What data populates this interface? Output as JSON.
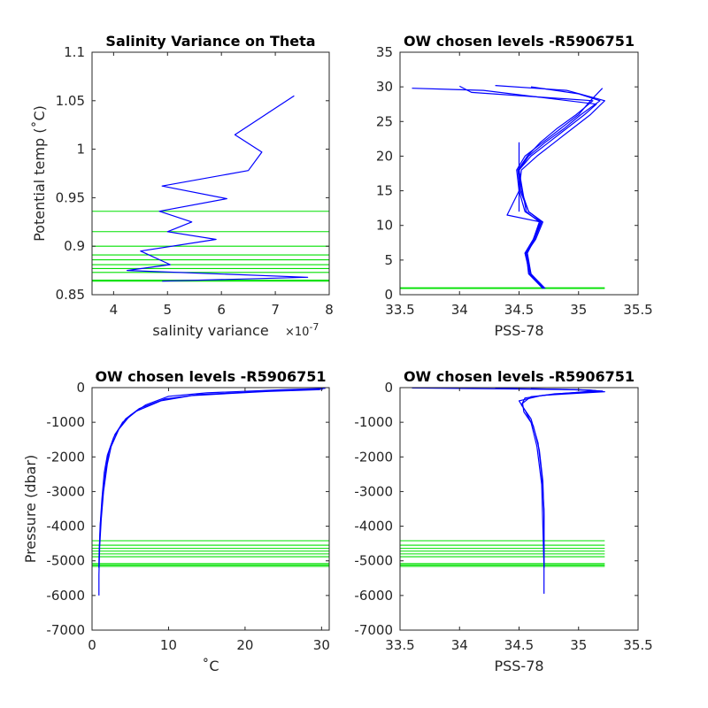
{
  "chart_data": [
    {
      "type": "line",
      "title": "Salinity Variance on Theta",
      "xlabel": "salinity variance",
      "ylabel": "Potential temp (˚C)",
      "x_exponent_label": "×10",
      "x_exponent": "-7",
      "xlim": [
        3.6,
        8
      ],
      "ylim": [
        0.85,
        1.1
      ],
      "xticks": [
        "4",
        "5",
        "6",
        "7",
        "8"
      ],
      "xtick_values": [
        4,
        5,
        6,
        7,
        8
      ],
      "yticks": [
        "0.85",
        "0.9",
        "0.95",
        "1",
        "1.05",
        "1.1"
      ],
      "ytick_values": [
        0.85,
        0.9,
        0.95,
        1.0,
        1.05,
        1.1
      ],
      "series": [
        {
          "color": "#0000ff",
          "x": [
            7.35,
            6.8,
            6.25,
            6.75,
            6.5,
            4.9,
            6.1,
            4.85,
            5.45,
            5.0,
            5.9,
            4.5,
            5.05,
            4.25,
            7.6,
            4.9
          ],
          "y": [
            1.055,
            1.035,
            1.015,
            0.997,
            0.978,
            0.962,
            0.949,
            0.936,
            0.925,
            0.915,
            0.907,
            0.895,
            0.881,
            0.875,
            0.868,
            0.864
          ]
        }
      ],
      "hlines": {
        "color": "#00e000",
        "y": [
          0.936,
          0.915,
          0.9,
          0.891,
          0.886,
          0.881,
          0.877,
          0.873,
          0.865,
          0.864
        ]
      }
    },
    {
      "type": "line",
      "title": "OW chosen levels -R5906751",
      "xlabel": "PSS-78",
      "ylabel": "",
      "xlim": [
        33.5,
        35.5
      ],
      "ylim": [
        0,
        35
      ],
      "xticks": [
        "33.5",
        "34",
        "34.5",
        "35",
        "35.5"
      ],
      "xtick_values": [
        33.5,
        34,
        34.5,
        35,
        35.5
      ],
      "yticks": [
        "0",
        "5",
        "10",
        "15",
        "20",
        "25",
        "30",
        "35"
      ],
      "ytick_values": [
        0,
        5,
        10,
        15,
        20,
        25,
        30,
        35
      ],
      "series": [
        {
          "color": "#0000ff",
          "x": [
            34.72,
            34.6,
            34.55,
            34.62,
            34.68,
            34.55,
            34.5,
            34.48,
            34.55,
            34.7,
            34.85,
            35.0,
            35.1,
            35.2
          ],
          "y": [
            0.9,
            3,
            6,
            8,
            10.5,
            12,
            15,
            18,
            20,
            22,
            24,
            26,
            28,
            29.8
          ]
        },
        {
          "color": "#0000ff",
          "x": [
            34.7,
            34.58,
            34.56,
            34.64,
            34.7,
            34.58,
            34.52,
            34.5,
            34.6,
            34.75,
            34.9,
            35.05,
            35.15,
            34.2,
            33.6
          ],
          "y": [
            0.9,
            3,
            6,
            8,
            10.5,
            12,
            15,
            18,
            20,
            22,
            24,
            26,
            27.5,
            29.5,
            29.8
          ]
        },
        {
          "color": "#0000ff",
          "x": [
            34.7,
            34.6,
            34.57,
            34.63,
            34.68,
            34.4,
            34.5,
            34.52,
            34.65,
            34.8,
            34.95,
            35.1,
            35.22,
            34.9,
            34.3
          ],
          "y": [
            0.9,
            3,
            6,
            8,
            10.5,
            11.5,
            15,
            18,
            20,
            22,
            24,
            26,
            28,
            29.5,
            30.2
          ]
        },
        {
          "color": "#0000ff",
          "x": [
            34.71,
            34.59,
            34.55,
            34.62,
            34.67,
            34.56,
            34.53,
            34.5,
            34.58,
            34.72,
            34.88,
            35.02,
            35.18,
            35.0,
            34.6
          ],
          "y": [
            0.9,
            3,
            6,
            8,
            10.5,
            12,
            15,
            18,
            20,
            22,
            24,
            26,
            28,
            29,
            30
          ]
        },
        {
          "color": "#0000ff",
          "x": [
            34.7,
            34.6,
            34.56,
            34.63,
            34.69,
            34.58,
            34.51,
            34.49,
            34.57,
            34.68,
            34.82,
            34.98,
            35.12,
            34.1,
            34.0
          ],
          "y": [
            0.9,
            3,
            6,
            8,
            10.5,
            12,
            15,
            18,
            20,
            22,
            24,
            26,
            28,
            29.2,
            30.1
          ]
        },
        {
          "color": "#0000ff",
          "x": [
            34.5,
            34.5
          ],
          "y": [
            12,
            22
          ]
        }
      ],
      "hlines": {
        "color": "#00e000",
        "y": [
          0.9,
          1.0
        ],
        "x_extent": [
          33.5,
          35.22
        ]
      }
    },
    {
      "type": "line",
      "title": "OW chosen levels -R5906751",
      "xlabel": "˚C",
      "ylabel": "Pressure (dbar)",
      "xlim": [
        0,
        31
      ],
      "ylim": [
        -7000,
        0
      ],
      "xticks": [
        "0",
        "10",
        "20",
        "30"
      ],
      "xtick_values": [
        0,
        10,
        20,
        30
      ],
      "yticks": [
        "-7000",
        "-6000",
        "-5000",
        "-4000",
        "-3000",
        "-2000",
        "-1000",
        "0"
      ],
      "ytick_values": [
        -7000,
        -6000,
        -5000,
        -4000,
        -3000,
        -2000,
        -1000,
        0
      ],
      "series": [
        {
          "color": "#0000ff",
          "x": [
            30.5,
            25,
            15,
            10,
            7,
            5,
            3.5,
            2.5,
            2,
            1.5,
            1.2,
            1.0,
            0.9,
            0.9
          ],
          "y": [
            -20,
            -60,
            -150,
            -250,
            -500,
            -800,
            -1200,
            -1700,
            -2200,
            -3000,
            -3800,
            -4600,
            -5400,
            -6000
          ]
        },
        {
          "color": "#0000ff",
          "x": [
            30.2,
            24,
            14,
            9.5,
            6.2,
            4.4,
            3.0,
            2.2,
            1.8,
            1.4,
            1.1,
            0.95,
            0.9
          ],
          "y": [
            -40,
            -90,
            -200,
            -330,
            -600,
            -900,
            -1350,
            -1850,
            -2350,
            -3100,
            -3900,
            -4700,
            -5200
          ]
        },
        {
          "color": "#0000ff",
          "x": [
            29.8,
            23,
            13,
            9,
            5.8,
            4.0,
            2.8,
            2.0,
            1.6,
            1.3,
            1.05,
            0.93,
            0.9
          ],
          "y": [
            -60,
            -110,
            -230,
            -380,
            -680,
            -1000,
            -1450,
            -1950,
            -2450,
            -3200,
            -4000,
            -4800,
            -5200
          ]
        }
      ],
      "hlines": {
        "color": "#00e000",
        "y": [
          -4420,
          -4550,
          -4640,
          -4720,
          -4800,
          -4880,
          -5080,
          -5120,
          -5160
        ]
      }
    },
    {
      "type": "line",
      "title": "OW chosen levels -R5906751",
      "xlabel": "PSS-78",
      "ylabel": "",
      "xlim": [
        33.5,
        35.5
      ],
      "ylim": [
        -7000,
        0
      ],
      "xticks": [
        "33.5",
        "34",
        "34.5",
        "35",
        "35.5"
      ],
      "xtick_values": [
        33.5,
        34,
        34.5,
        35,
        35.5
      ],
      "yticks": [
        "-7000",
        "-6000",
        "-5000",
        "-4000",
        "-3000",
        "-2000",
        "-1000",
        "0"
      ],
      "ytick_values": [
        -7000,
        -6000,
        -5000,
        -4000,
        -3000,
        -2000,
        -1000,
        0
      ],
      "series": [
        {
          "color": "#0000ff",
          "x": [
            33.6,
            34.2,
            35.0,
            35.2,
            34.8,
            34.55,
            34.52,
            34.6,
            34.66,
            34.69,
            34.71,
            34.71,
            34.71
          ],
          "y": [
            -10,
            -30,
            -60,
            -100,
            -180,
            -300,
            -500,
            -900,
            -1600,
            -2500,
            -3500,
            -4500,
            -5950
          ]
        },
        {
          "color": "#0000ff",
          "x": [
            34.3,
            34.9,
            35.15,
            34.9,
            34.6,
            34.53,
            34.54,
            34.62,
            34.67,
            34.7,
            34.71,
            34.71
          ],
          "y": [
            -20,
            -50,
            -90,
            -160,
            -260,
            -450,
            -700,
            -1100,
            -1800,
            -2700,
            -3700,
            -5200
          ]
        },
        {
          "color": "#0000ff",
          "x": [
            34.6,
            35.1,
            35.22,
            34.7,
            34.5,
            34.55,
            34.6,
            34.65,
            34.69,
            34.71
          ],
          "y": [
            -30,
            -70,
            -120,
            -220,
            -380,
            -650,
            -1000,
            -1700,
            -2800,
            -5200
          ]
        }
      ],
      "hlines": {
        "color": "#00e000",
        "y": [
          -4420,
          -4550,
          -4640,
          -4720,
          -4800,
          -4880,
          -5080,
          -5120,
          -5160
        ],
        "x_extent": [
          33.5,
          35.22
        ]
      }
    }
  ]
}
